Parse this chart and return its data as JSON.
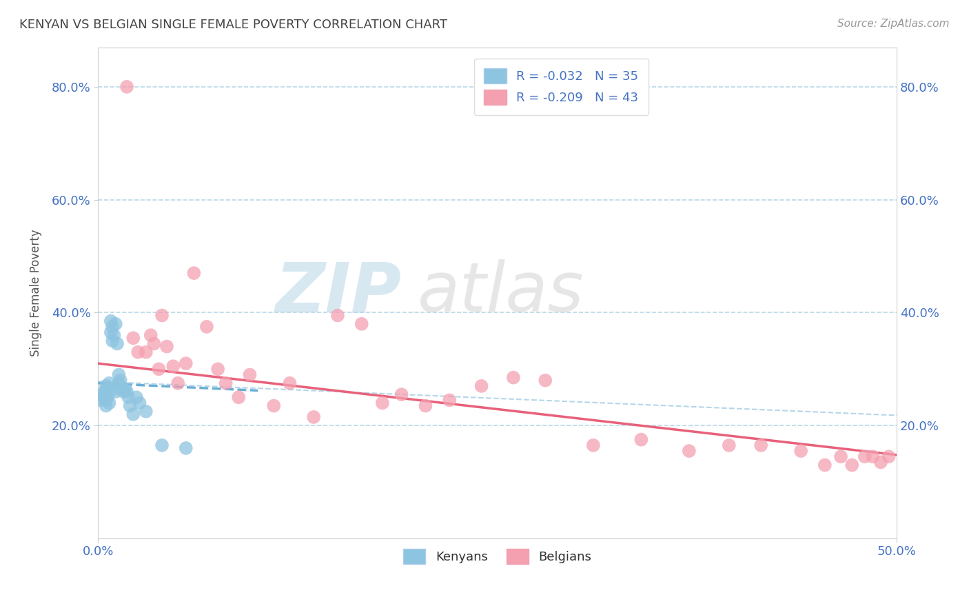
{
  "title": "KENYAN VS BELGIAN SINGLE FEMALE POVERTY CORRELATION CHART",
  "source": "Source: ZipAtlas.com",
  "ylabel": "Single Female Poverty",
  "xlim": [
    0.0,
    0.5
  ],
  "ylim": [
    0.0,
    0.87
  ],
  "xtick_positions": [
    0.0,
    0.5
  ],
  "xtick_labels": [
    "0.0%",
    "50.0%"
  ],
  "ytick_positions": [
    0.2,
    0.4,
    0.6,
    0.8
  ],
  "ytick_labels": [
    "20.0%",
    "40.0%",
    "60.0%",
    "80.0%"
  ],
  "legend_entry1": "R = -0.032   N = 35",
  "legend_entry2": "R = -0.209   N = 43",
  "kenyan_color": "#8DC4E0",
  "belgian_color": "#F4A0B0",
  "trend_kenyan_color": "#6AAED6",
  "trend_belgian_color": "#E8607A",
  "kenyan_points_x": [
    0.002,
    0.003,
    0.004,
    0.004,
    0.005,
    0.005,
    0.005,
    0.006,
    0.006,
    0.007,
    0.007,
    0.008,
    0.008,
    0.009,
    0.009,
    0.01,
    0.01,
    0.011,
    0.011,
    0.012,
    0.013,
    0.013,
    0.014,
    0.015,
    0.016,
    0.017,
    0.018,
    0.019,
    0.02,
    0.022,
    0.024,
    0.026,
    0.03,
    0.04,
    0.055
  ],
  "kenyan_points_y": [
    0.245,
    0.255,
    0.26,
    0.25,
    0.27,
    0.245,
    0.235,
    0.265,
    0.25,
    0.275,
    0.24,
    0.385,
    0.365,
    0.35,
    0.375,
    0.36,
    0.265,
    0.26,
    0.38,
    0.345,
    0.275,
    0.29,
    0.28,
    0.265,
    0.26,
    0.265,
    0.26,
    0.25,
    0.235,
    0.22,
    0.25,
    0.24,
    0.225,
    0.165,
    0.16
  ],
  "belgian_points_x": [
    0.018,
    0.022,
    0.025,
    0.03,
    0.033,
    0.035,
    0.038,
    0.04,
    0.043,
    0.047,
    0.05,
    0.055,
    0.06,
    0.068,
    0.075,
    0.08,
    0.088,
    0.095,
    0.11,
    0.12,
    0.135,
    0.15,
    0.165,
    0.178,
    0.19,
    0.205,
    0.22,
    0.24,
    0.26,
    0.28,
    0.31,
    0.34,
    0.37,
    0.395,
    0.415,
    0.44,
    0.455,
    0.465,
    0.472,
    0.48,
    0.485,
    0.49,
    0.495
  ],
  "belgian_points_y": [
    0.8,
    0.355,
    0.33,
    0.33,
    0.36,
    0.345,
    0.3,
    0.395,
    0.34,
    0.305,
    0.275,
    0.31,
    0.47,
    0.375,
    0.3,
    0.275,
    0.25,
    0.29,
    0.235,
    0.275,
    0.215,
    0.395,
    0.38,
    0.24,
    0.255,
    0.235,
    0.245,
    0.27,
    0.285,
    0.28,
    0.165,
    0.175,
    0.155,
    0.165,
    0.165,
    0.155,
    0.13,
    0.145,
    0.13,
    0.145,
    0.145,
    0.135,
    0.145
  ],
  "trend_k_x0": 0.0,
  "trend_k_x1": 0.1,
  "trend_k_y0": 0.275,
  "trend_k_y1": 0.262,
  "trend_b_x0": 0.0,
  "trend_b_x1": 0.5,
  "trend_b_y0": 0.31,
  "trend_b_y1": 0.148
}
